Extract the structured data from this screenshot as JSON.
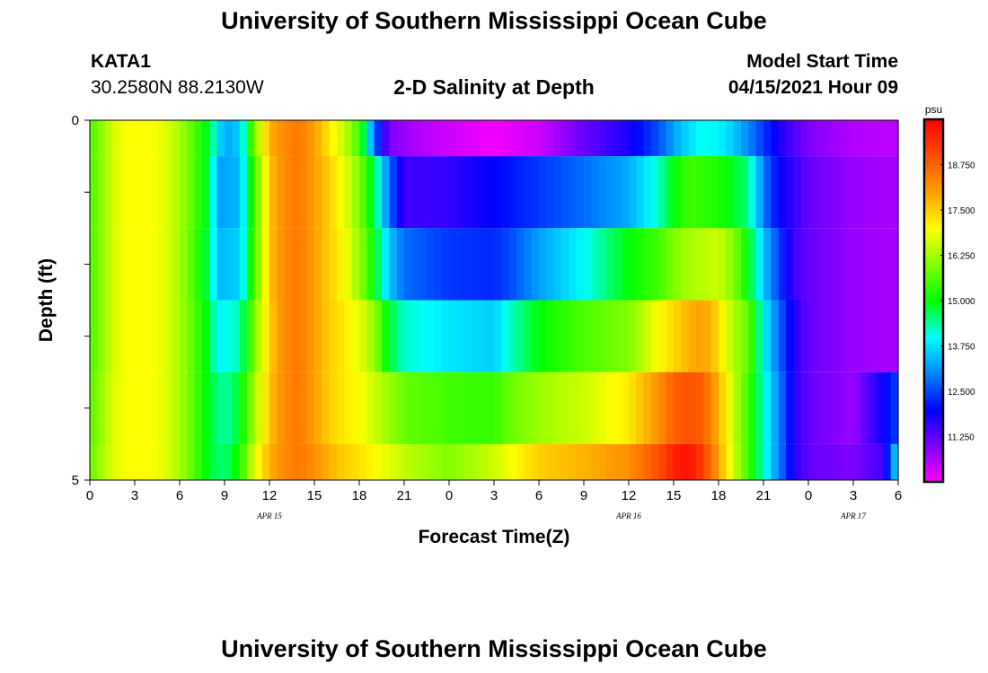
{
  "page": {
    "title_top": "University of Southern Mississippi Ocean Cube",
    "title_bottom": "University of Southern Mississippi Ocean Cube",
    "station_id": "KATA1",
    "coords": "30.2580N  88.2130W",
    "chart_title": "2-D Salinity at Depth",
    "model_start_label": "Model Start Time",
    "model_start_value": "04/15/2021 Hour 09"
  },
  "chart_data": {
    "type": "heatmap",
    "title": "2-D Salinity at Depth",
    "xlabel": "Forecast Time(Z)",
    "ylabel": "Depth (ft)",
    "x_hours": [
      0,
      3,
      6,
      9,
      12,
      15,
      18,
      21,
      24,
      27,
      30,
      33,
      36,
      39,
      42,
      45,
      48,
      51,
      54
    ],
    "x_tick_labels": [
      "0",
      "3",
      "6",
      "9",
      "12",
      "15",
      "18",
      "21",
      "0",
      "3",
      "6",
      "9",
      "12",
      "15",
      "18",
      "21",
      "0",
      "3",
      "6"
    ],
    "date_labels": [
      {
        "hour": 12,
        "text": "APR 15"
      },
      {
        "hour": 36,
        "text": "APR 16"
      },
      {
        "hour": 51,
        "text": "APR 17"
      }
    ],
    "y_ticks": [
      0,
      1,
      2,
      3,
      4,
      5
    ],
    "y_tick_labels": [
      "0",
      "",
      "",
      "",
      "",
      "5"
    ],
    "ylim": [
      0,
      5
    ],
    "xlim": [
      0,
      54
    ],
    "value_range": [
      10,
      20
    ],
    "colorbar": {
      "unit": "psu",
      "ticks": [
        11.25,
        12.5,
        13.75,
        15.0,
        16.25,
        17.5,
        18.75
      ],
      "tick_labels": [
        "11.250",
        "12.500",
        "13.750",
        "15.000",
        "16.250",
        "17.500",
        "18.750"
      ],
      "colors": [
        "#ff00ff",
        "#8000ff",
        "#0000ff",
        "#0088ff",
        "#00ffff",
        "#00ff00",
        "#80ff00",
        "#ffff00",
        "#ffa000",
        "#ff5000",
        "#ff0000"
      ]
    },
    "depth_layers": [
      {
        "depth_top": 0,
        "depth_bottom": 0.5,
        "keys": [
          [
            0,
            15.5
          ],
          [
            1,
            16.3
          ],
          [
            2,
            16.9
          ],
          [
            3,
            17.0
          ],
          [
            4,
            17.0
          ],
          [
            5,
            16.8
          ],
          [
            6,
            16.3
          ],
          [
            7,
            15.6
          ],
          [
            8,
            14.7
          ],
          [
            9,
            13.2
          ],
          [
            10,
            13.6
          ],
          [
            11,
            16.0
          ],
          [
            12,
            17.8
          ],
          [
            13,
            18.3
          ],
          [
            14,
            18.5
          ],
          [
            15,
            18.0
          ],
          [
            16,
            17.2
          ],
          [
            17,
            16.5
          ],
          [
            18,
            15.5
          ],
          [
            19,
            12.8
          ],
          [
            20,
            11.0
          ],
          [
            22,
            10.6
          ],
          [
            24,
            10.4
          ],
          [
            27,
            10.1
          ],
          [
            30,
            10.4
          ],
          [
            33,
            11.2
          ],
          [
            36,
            11.8
          ],
          [
            38,
            12.6
          ],
          [
            39.5,
            13.5
          ],
          [
            41,
            14.1
          ],
          [
            42.5,
            13.8
          ],
          [
            44,
            13.0
          ],
          [
            46,
            11.8
          ],
          [
            48,
            11.0
          ],
          [
            51,
            10.6
          ],
          [
            54,
            10.5
          ]
        ]
      },
      {
        "depth_top": 0.5,
        "depth_bottom": 1.5,
        "keys": [
          [
            0,
            15.5
          ],
          [
            1,
            16.3
          ],
          [
            2,
            16.9
          ],
          [
            3,
            17.0
          ],
          [
            4,
            17.0
          ],
          [
            5,
            16.8
          ],
          [
            6,
            16.3
          ],
          [
            7,
            15.6
          ],
          [
            8,
            14.7
          ],
          [
            8.5,
            13.2
          ],
          [
            10,
            13.4
          ],
          [
            11,
            15.5
          ],
          [
            12,
            17.6
          ],
          [
            13,
            18.3
          ],
          [
            14,
            18.5
          ],
          [
            15,
            18.0
          ],
          [
            16,
            17.5
          ],
          [
            17,
            16.8
          ],
          [
            18,
            16.0
          ],
          [
            19,
            14.7
          ],
          [
            20,
            12.8
          ],
          [
            21,
            11.5
          ],
          [
            24,
            11.6
          ],
          [
            27,
            12.0
          ],
          [
            30,
            12.4
          ],
          [
            33,
            12.8
          ],
          [
            36,
            13.3
          ],
          [
            38,
            14.2
          ],
          [
            39,
            15.0
          ],
          [
            40,
            15.5
          ],
          [
            42,
            15.2
          ],
          [
            44,
            14.5
          ],
          [
            45,
            12.9
          ],
          [
            46,
            12.0
          ],
          [
            48,
            11.2
          ],
          [
            51,
            10.8
          ],
          [
            54,
            10.7
          ]
        ]
      },
      {
        "depth_top": 1.5,
        "depth_bottom": 2.5,
        "keys": [
          [
            0,
            15.5
          ],
          [
            1,
            16.3
          ],
          [
            2,
            16.9
          ],
          [
            3,
            17.0
          ],
          [
            4,
            17.0
          ],
          [
            5,
            16.8
          ],
          [
            6,
            16.3
          ],
          [
            7,
            15.5
          ],
          [
            8,
            14.6
          ],
          [
            8.5,
            13.4
          ],
          [
            10,
            13.6
          ],
          [
            11,
            15.6
          ],
          [
            12,
            17.6
          ],
          [
            13,
            18.3
          ],
          [
            14,
            18.5
          ],
          [
            15,
            18.0
          ],
          [
            16,
            17.5
          ],
          [
            17,
            17.0
          ],
          [
            18,
            16.2
          ],
          [
            19,
            15.0
          ],
          [
            20,
            13.5
          ],
          [
            21,
            12.8
          ],
          [
            24,
            12.4
          ],
          [
            27,
            12.3
          ],
          [
            28,
            12.5
          ],
          [
            30,
            13.2
          ],
          [
            33,
            14.0
          ],
          [
            36,
            15.0
          ],
          [
            38,
            15.5
          ],
          [
            39,
            16.0
          ],
          [
            40,
            16.3
          ],
          [
            42,
            16.6
          ],
          [
            43,
            16.0
          ],
          [
            44,
            15.0
          ],
          [
            45,
            13.5
          ],
          [
            46,
            12.5
          ],
          [
            47,
            11.5
          ],
          [
            48,
            11.2
          ],
          [
            51,
            10.8
          ],
          [
            54,
            10.7
          ]
        ]
      },
      {
        "depth_top": 2.5,
        "depth_bottom": 3.5,
        "keys": [
          [
            0,
            15.5
          ],
          [
            1,
            16.3
          ],
          [
            2,
            16.9
          ],
          [
            3,
            17.0
          ],
          [
            4,
            17.0
          ],
          [
            5,
            16.8
          ],
          [
            6,
            16.3
          ],
          [
            7,
            15.6
          ],
          [
            8,
            14.8
          ],
          [
            8.5,
            13.9
          ],
          [
            10,
            14.3
          ],
          [
            11,
            16.0
          ],
          [
            12,
            17.5
          ],
          [
            13,
            18.3
          ],
          [
            14,
            18.5
          ],
          [
            15,
            18.0
          ],
          [
            16,
            17.5
          ],
          [
            17,
            17.2
          ],
          [
            18,
            16.8
          ],
          [
            19,
            16.2
          ],
          [
            20,
            14.8
          ],
          [
            21,
            14.2
          ],
          [
            24,
            13.8
          ],
          [
            27,
            13.6
          ],
          [
            28,
            14.2
          ],
          [
            30,
            15.0
          ],
          [
            33,
            15.6
          ],
          [
            36,
            16.0
          ],
          [
            38,
            17.0
          ],
          [
            40,
            17.8
          ],
          [
            41,
            18.0
          ],
          [
            42,
            17.4
          ],
          [
            43,
            16.3
          ],
          [
            44,
            15.8
          ],
          [
            45,
            14.0
          ],
          [
            46,
            12.8
          ],
          [
            47,
            11.8
          ],
          [
            48,
            11.2
          ],
          [
            51,
            10.8
          ],
          [
            54,
            10.7
          ]
        ]
      },
      {
        "depth_top": 3.5,
        "depth_bottom": 4.5,
        "keys": [
          [
            0,
            15.6
          ],
          [
            1,
            16.4
          ],
          [
            2,
            16.9
          ],
          [
            3,
            17.0
          ],
          [
            4,
            17.0
          ],
          [
            5,
            16.8
          ],
          [
            6,
            16.3
          ],
          [
            7,
            15.6
          ],
          [
            8,
            14.8
          ],
          [
            9,
            14.3
          ],
          [
            10,
            14.9
          ],
          [
            11,
            16.3
          ],
          [
            12,
            17.6
          ],
          [
            13,
            18.3
          ],
          [
            14,
            18.5
          ],
          [
            15,
            18.0
          ],
          [
            16,
            17.5
          ],
          [
            17,
            17.2
          ],
          [
            18,
            17.0
          ],
          [
            19,
            16.6
          ],
          [
            20,
            16.2
          ],
          [
            21,
            15.8
          ],
          [
            24,
            15.5
          ],
          [
            27,
            15.4
          ],
          [
            28,
            15.8
          ],
          [
            30,
            16.2
          ],
          [
            33,
            16.6
          ],
          [
            36,
            17.2
          ],
          [
            38,
            18.2
          ],
          [
            39,
            18.8
          ],
          [
            40,
            19.0
          ],
          [
            41,
            18.8
          ],
          [
            42,
            17.8
          ],
          [
            43,
            16.5
          ],
          [
            44,
            15.5
          ],
          [
            45,
            14.2
          ],
          [
            46,
            13.0
          ],
          [
            47,
            11.8
          ],
          [
            48,
            11.2
          ],
          [
            51,
            10.8
          ],
          [
            54,
            12.5
          ]
        ]
      },
      {
        "depth_top": 4.5,
        "depth_bottom": 5,
        "keys": [
          [
            0,
            15.7
          ],
          [
            1,
            16.5
          ],
          [
            2,
            16.9
          ],
          [
            3,
            17.0
          ],
          [
            4,
            17.0
          ],
          [
            5,
            16.8
          ],
          [
            6,
            16.3
          ],
          [
            7,
            15.6
          ],
          [
            8,
            14.8
          ],
          [
            9,
            14.5
          ],
          [
            10,
            15.2
          ],
          [
            11,
            16.8
          ],
          [
            12,
            17.8
          ],
          [
            13,
            18.3
          ],
          [
            14,
            18.5
          ],
          [
            15,
            18.2
          ],
          [
            16,
            17.8
          ],
          [
            17,
            17.5
          ],
          [
            18,
            17.3
          ],
          [
            19,
            17.0
          ],
          [
            20,
            16.8
          ],
          [
            21,
            16.5
          ],
          [
            24,
            16.0
          ],
          [
            27,
            16.6
          ],
          [
            30,
            17.5
          ],
          [
            33,
            17.8
          ],
          [
            36,
            18.2
          ],
          [
            38,
            19.0
          ],
          [
            39,
            19.6
          ],
          [
            40,
            19.8
          ],
          [
            41,
            19.2
          ],
          [
            42,
            18.0
          ],
          [
            43,
            16.6
          ],
          [
            44,
            15.5
          ],
          [
            45,
            14.2
          ],
          [
            46,
            13.0
          ],
          [
            47,
            11.8
          ],
          [
            48,
            11.2
          ],
          [
            51,
            11.0
          ],
          [
            53,
            11.5
          ],
          [
            53.5,
            12.8
          ],
          [
            54,
            14.0
          ]
        ]
      }
    ]
  }
}
